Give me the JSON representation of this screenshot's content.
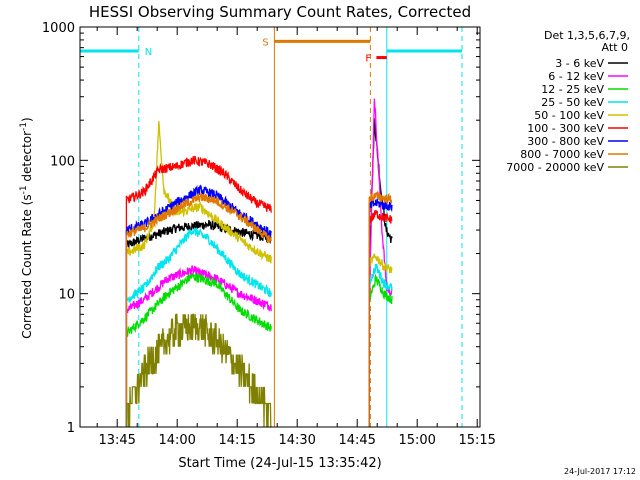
{
  "chart_data": {
    "type": "line",
    "title": "HESSI Observing Summary Count Rates, Corrected",
    "xlabel": "Start Time (24-Jul-15 13:35:42)",
    "ylabel_main": "Corrected Count Rate (s",
    "ylabel_sup1": "-1",
    "ylabel_mid": " detector",
    "ylabel_sup2": "-1",
    "ylabel_end": ")",
    "y_scale": "log",
    "ylim": [
      1,
      1000
    ],
    "xlim_minutes": [
      0,
      100
    ],
    "x_ticks": [
      {
        "label": "13:45",
        "t": 9.3
      },
      {
        "label": "14:00",
        "t": 24.3
      },
      {
        "label": "14:15",
        "t": 39.3
      },
      {
        "label": "14:30",
        "t": 54.3
      },
      {
        "label": "14:45",
        "t": 69.3
      },
      {
        "label": "15:00",
        "t": 84.3
      },
      {
        "label": "15:15",
        "t": 99.3
      }
    ],
    "y_ticks": [
      {
        "label": "1",
        "v": 1
      },
      {
        "label": "10",
        "v": 10
      },
      {
        "label": "100",
        "v": 100
      },
      {
        "label": "1000",
        "v": 1000
      }
    ],
    "legend_header": [
      "Det 1,3,5,6,7,9,",
      "Att 0"
    ],
    "legend_position": "right",
    "date_stamp": "24-Jul-2017 17:12",
    "markers": {
      "N": {
        "label": "N",
        "color": "#00e5ee",
        "segments": [
          [
            0,
            14.7
          ],
          [
            76.7,
            95.5
          ]
        ],
        "y": 660,
        "lines_solid": [
          0,
          76.7
        ],
        "lines_dashed": [
          14.7,
          95.5
        ]
      },
      "S": {
        "label": "S",
        "color": "#e07800",
        "bar": [
          48.6,
          72.6
        ],
        "y": 780,
        "line_solid": 48.6,
        "line_dashed": 72.6
      },
      "F": {
        "label": "F",
        "color": "#ff0000",
        "bar": [
          74.1,
          76.7
        ],
        "y": 590
      }
    },
    "segments": [
      {
        "t0": 11.6,
        "t1": 47.8
      },
      {
        "t0": 72.3,
        "t1": 78.0
      }
    ],
    "series": [
      {
        "name": "3 - 6 keV",
        "color": "#000000",
        "seg0": [
          [
            11.6,
            23
          ],
          [
            16,
            26
          ],
          [
            24,
            31
          ],
          [
            32,
            33
          ],
          [
            40,
            29
          ],
          [
            47.8,
            26
          ]
        ],
        "seg1": [
          [
            72.3,
            15
          ],
          [
            73.6,
            200
          ],
          [
            75.2,
            60
          ],
          [
            76.5,
            30
          ],
          [
            78.0,
            25
          ]
        ]
      },
      {
        "name": "6 - 12 keV",
        "color": "#ff00ff",
        "seg0": [
          [
            11.6,
            7.5
          ],
          [
            16,
            9
          ],
          [
            22,
            13
          ],
          [
            28,
            15
          ],
          [
            34,
            13
          ],
          [
            40,
            10
          ],
          [
            47.8,
            8
          ]
        ],
        "seg1": [
          [
            72.3,
            8
          ],
          [
            73.6,
            300
          ],
          [
            75.5,
            30
          ],
          [
            76.7,
            11
          ],
          [
            78.0,
            10
          ]
        ]
      },
      {
        "name": "12 - 25 keV",
        "color": "#00dd00",
        "seg0": [
          [
            11.6,
            5
          ],
          [
            16,
            6.5
          ],
          [
            22,
            10
          ],
          [
            28,
            13.5
          ],
          [
            34,
            12
          ],
          [
            40,
            7.5
          ],
          [
            47.8,
            5.5
          ]
        ],
        "seg1": [
          [
            72.3,
            9
          ],
          [
            74.0,
            13
          ],
          [
            76.0,
            10
          ],
          [
            78.0,
            9
          ]
        ]
      },
      {
        "name": "25 - 50 keV",
        "color": "#00e5ee",
        "seg0": [
          [
            11.6,
            9
          ],
          [
            16,
            11
          ],
          [
            19.7,
            16
          ],
          [
            22,
            18
          ],
          [
            28,
            30
          ],
          [
            32,
            26
          ],
          [
            40,
            14
          ],
          [
            47.8,
            10
          ]
        ],
        "seg1": [
          [
            72.3,
            12
          ],
          [
            74.0,
            16
          ],
          [
            76.0,
            12
          ],
          [
            78.0,
            11
          ]
        ]
      },
      {
        "name": "50 - 100 keV",
        "color": "#d0c000",
        "seg0": [
          [
            11.6,
            20
          ],
          [
            16,
            23
          ],
          [
            18.5,
            35
          ],
          [
            19.7,
            190
          ],
          [
            21,
            60
          ],
          [
            24,
            40
          ],
          [
            30,
            45
          ],
          [
            36,
            32
          ],
          [
            42,
            23
          ],
          [
            47.8,
            18
          ]
        ],
        "seg1": [
          [
            72.3,
            17
          ],
          [
            74.0,
            19
          ],
          [
            76.0,
            16
          ],
          [
            78.0,
            15
          ]
        ]
      },
      {
        "name": "100 - 300 keV",
        "color": "#ff0000",
        "seg0": [
          [
            11.6,
            50
          ],
          [
            16,
            58
          ],
          [
            19.7,
            85
          ],
          [
            24,
            90
          ],
          [
            28,
            100
          ],
          [
            32,
            95
          ],
          [
            36,
            80
          ],
          [
            40,
            60
          ],
          [
            44,
            48
          ],
          [
            47.8,
            43
          ]
        ],
        "seg1": [
          [
            72.3,
            35
          ],
          [
            74.0,
            40
          ],
          [
            76.0,
            37
          ],
          [
            78.0,
            36
          ]
        ]
      },
      {
        "name": "300 - 800 keV",
        "color": "#0000ff",
        "seg0": [
          [
            11.6,
            30
          ],
          [
            16,
            33
          ],
          [
            20,
            40
          ],
          [
            25,
            50
          ],
          [
            30,
            60
          ],
          [
            34,
            55
          ],
          [
            40,
            40
          ],
          [
            47.8,
            28
          ]
        ],
        "seg1": [
          [
            72.3,
            45
          ],
          [
            74.0,
            48
          ],
          [
            76.0,
            46
          ],
          [
            78.0,
            45
          ]
        ]
      },
      {
        "name": "800 - 7000 keV",
        "color": "#e07800",
        "seg0": [
          [
            11.6,
            28
          ],
          [
            16,
            31
          ],
          [
            20,
            37
          ],
          [
            25,
            45
          ],
          [
            30,
            53
          ],
          [
            34,
            50
          ],
          [
            40,
            38
          ],
          [
            47.8,
            25
          ]
        ],
        "seg1": [
          [
            72.3,
            52
          ],
          [
            74.0,
            54
          ],
          [
            76.0,
            52
          ],
          [
            78.0,
            51
          ]
        ]
      },
      {
        "name": "7000 - 20000 keV",
        "color": "#808000",
        "seg0": [
          [
            11.6,
            1.3
          ],
          [
            15,
            2.2
          ],
          [
            18,
            3.2
          ],
          [
            21,
            4.2
          ],
          [
            24,
            5.4
          ],
          [
            30,
            5.6
          ],
          [
            34,
            4.5
          ],
          [
            38,
            3.2
          ],
          [
            42,
            2.2
          ],
          [
            47.8,
            1.3
          ]
        ],
        "seg1": []
      }
    ]
  }
}
